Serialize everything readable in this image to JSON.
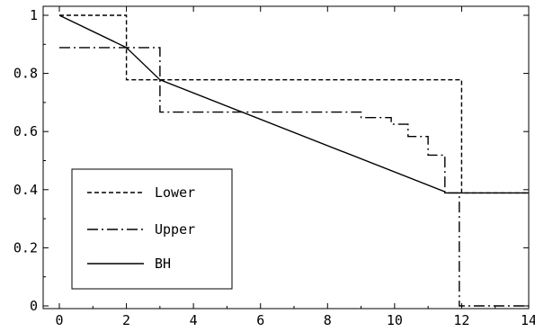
{
  "chart_data": {
    "type": "line",
    "title": "",
    "xlabel": "",
    "ylabel": "",
    "xlim": [
      -0.3,
      14
    ],
    "ylim": [
      -0.02,
      1.02
    ],
    "grid": false,
    "legend_position": "bottom-left",
    "x_ticks": [
      {
        "value": 0,
        "label": "0"
      },
      {
        "value": 2,
        "label": "2"
      },
      {
        "value": 4,
        "label": "4"
      },
      {
        "value": 6,
        "label": "6"
      },
      {
        "value": 8,
        "label": "8"
      },
      {
        "value": 10,
        "label": "10"
      },
      {
        "value": 12,
        "label": "12"
      },
      {
        "value": 14,
        "label": "14"
      }
    ],
    "y_ticks": [
      {
        "value": 0,
        "label": "0"
      },
      {
        "value": 0.2,
        "label": "0.2"
      },
      {
        "value": 0.4,
        "label": "0.4"
      },
      {
        "value": 0.6,
        "label": "0.6"
      },
      {
        "value": 0.8,
        "label": "0.8"
      },
      {
        "value": 1,
        "label": "1"
      }
    ],
    "series": [
      {
        "name": "Lower",
        "style": "dashed",
        "points": [
          [
            0,
            1
          ],
          [
            2,
            1
          ],
          [
            2,
            0.778
          ],
          [
            12,
            0.778
          ],
          [
            12,
            0.389
          ],
          [
            14,
            0.389
          ]
        ]
      },
      {
        "name": "Upper",
        "style": "dashdot",
        "points": [
          [
            0,
            0.889
          ],
          [
            3,
            0.889
          ],
          [
            3,
            0.667
          ],
          [
            9,
            0.667
          ],
          [
            9,
            0.648
          ],
          [
            9.9,
            0.648
          ],
          [
            9.9,
            0.625
          ],
          [
            10.4,
            0.625
          ],
          [
            10.4,
            0.583
          ],
          [
            11,
            0.583
          ],
          [
            11,
            0.519
          ],
          [
            11.5,
            0.519
          ],
          [
            11.5,
            0.389
          ],
          [
            11.93,
            0.389
          ],
          [
            11.93,
            0
          ],
          [
            14,
            0
          ]
        ]
      },
      {
        "name": "BH",
        "style": "solid",
        "points": [
          [
            0,
            1
          ],
          [
            2,
            0.889
          ],
          [
            3,
            0.778
          ],
          [
            11.5,
            0.393
          ],
          [
            11.5,
            0.389
          ],
          [
            14,
            0.389
          ]
        ]
      }
    ]
  }
}
